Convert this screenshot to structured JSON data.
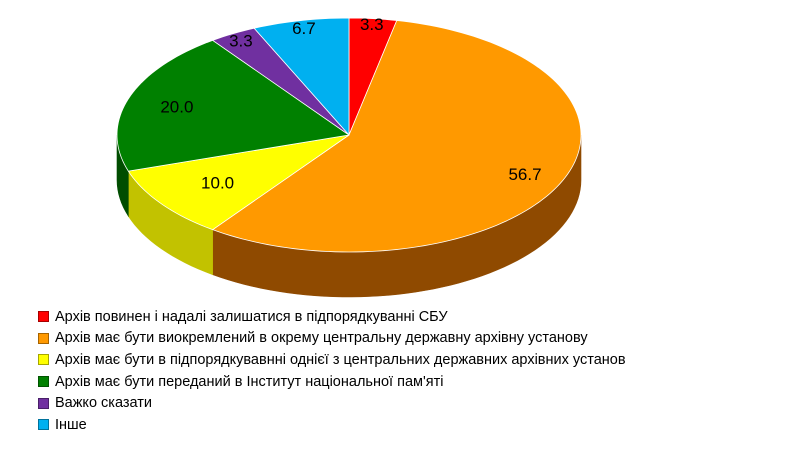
{
  "chart_data": {
    "type": "pie",
    "title": "",
    "unit": "",
    "legend_position": "bottom-left",
    "three_d": true,
    "slices": [
      {
        "label": "Архів повинен і надалі залишатися в підпорядкуванні СБУ",
        "value": 3.3,
        "display": "3.3",
        "color": "#ff0000",
        "side_color": "#a30000"
      },
      {
        "label": "Архів має бути виокремлений в окрему центральну державну архівну установу",
        "value": 56.7,
        "display": "56.7",
        "color": "#ff9900",
        "side_color": "#8f4a00"
      },
      {
        "label": "Архів має бути в підпорядкуванні однієї з центральних державних архівних установ",
        "value": 10.0,
        "display": "10.0",
        "color": "#ffff00",
        "side_color": "#c2c200"
      },
      {
        "label": "Архів має бути переданий в Інститут національної пам'яті",
        "value": 20.0,
        "display": "20.0",
        "color": "#008000",
        "side_color": "#004d00"
      },
      {
        "label": "Важко сказати",
        "value": 3.3,
        "display": "3.3",
        "color": "#7030a0",
        "side_color": "#40185e"
      },
      {
        "label": "Інше",
        "value": 6.7,
        "display": "6.7",
        "color": "#00b0f0",
        "side_color": "#006f99"
      }
    ]
  },
  "legend": {
    "items": [
      "Архів повинен і надалі залишатися в підпорядкуванні СБУ",
      "Архів має бути виокремлений в окрему центральну державну архівну установу",
      "Архів має бути в підпорядкувавнні однієї з центральних державних архівних установ",
      "Архів має бути переданий в Інститут національної пам'яті",
      "Важко сказати",
      "Інше"
    ]
  }
}
